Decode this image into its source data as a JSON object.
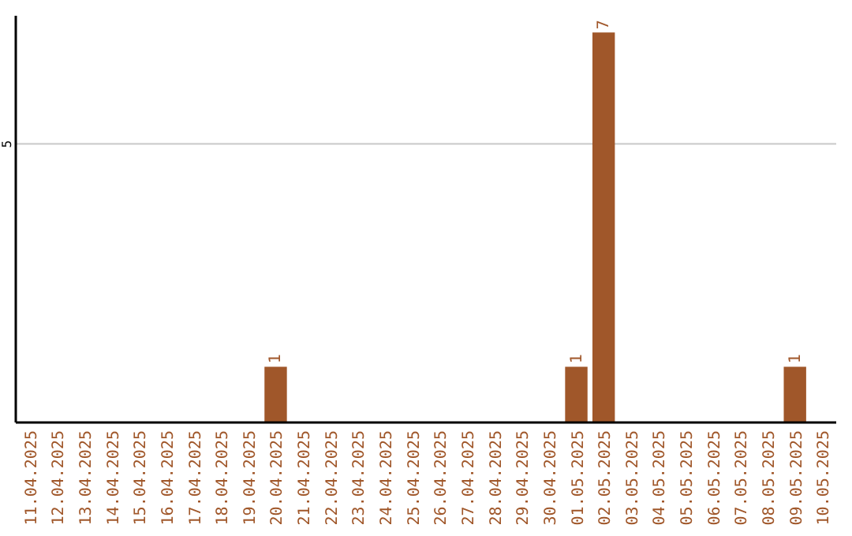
{
  "chart_data": {
    "type": "bar",
    "categories": [
      "11.04.2025",
      "12.04.2025",
      "13.04.2025",
      "14.04.2025",
      "15.04.2025",
      "16.04.2025",
      "17.04.2025",
      "18.04.2025",
      "19.04.2025",
      "20.04.2025",
      "21.04.2025",
      "22.04.2025",
      "23.04.2025",
      "24.04.2025",
      "25.04.2025",
      "26.04.2025",
      "27.04.2025",
      "28.04.2025",
      "29.04.2025",
      "30.04.2025",
      "01.05.2025",
      "02.05.2025",
      "03.05.2025",
      "04.05.2025",
      "05.05.2025",
      "06.05.2025",
      "07.05.2025",
      "08.05.2025",
      "09.05.2025",
      "10.05.2025"
    ],
    "values": [
      0,
      0,
      0,
      0,
      0,
      0,
      0,
      0,
      0,
      1,
      0,
      0,
      0,
      0,
      0,
      0,
      0,
      0,
      0,
      0,
      1,
      7,
      0,
      0,
      0,
      0,
      0,
      0,
      1,
      0
    ],
    "value_labels": [
      null,
      null,
      null,
      null,
      null,
      null,
      null,
      null,
      null,
      "1",
      null,
      null,
      null,
      null,
      null,
      null,
      null,
      null,
      null,
      null,
      "1",
      "7",
      null,
      null,
      null,
      null,
      null,
      null,
      "1",
      null
    ],
    "color": "#a0572a",
    "ylim": [
      0,
      7.3
    ],
    "yticks": [
      5
    ],
    "grid": "y"
  }
}
